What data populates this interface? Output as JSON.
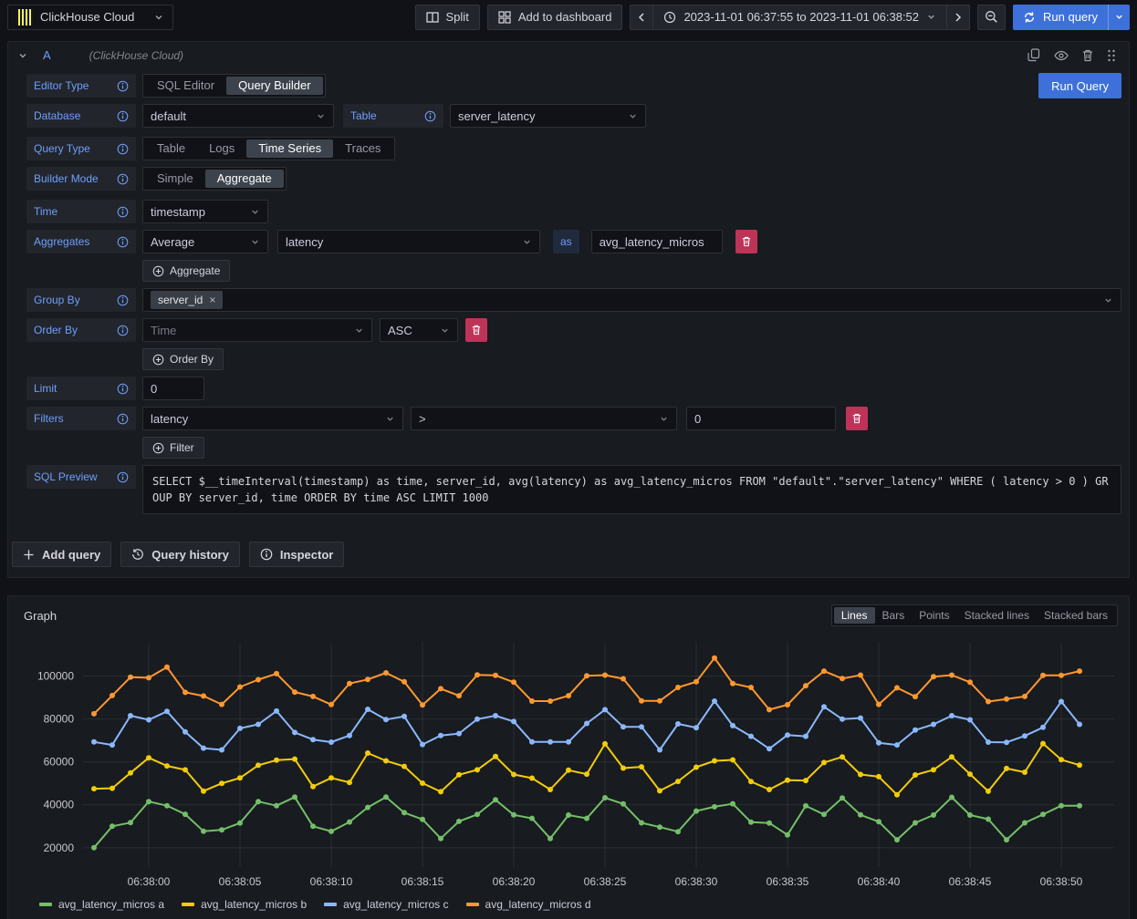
{
  "top_bar": {
    "datasource_name": "ClickHouse Cloud",
    "split": "Split",
    "add_to_dashboard": "Add to dashboard",
    "time_range": "2023-11-01 06:37:55 to 2023-11-01 06:38:52",
    "run_query": "Run query"
  },
  "query_editor": {
    "ref_id": "A",
    "datasource_hint": "(ClickHouse Cloud)",
    "run_query": "Run Query",
    "editor_type": {
      "label": "Editor Type",
      "options": [
        "SQL Editor",
        "Query Builder"
      ],
      "selected": "Query Builder"
    },
    "database": {
      "label": "Database",
      "value": "default"
    },
    "table": {
      "label": "Table",
      "value": "server_latency"
    },
    "query_type": {
      "label": "Query Type",
      "options": [
        "Table",
        "Logs",
        "Time Series",
        "Traces"
      ],
      "selected": "Time Series"
    },
    "builder_mode": {
      "label": "Builder Mode",
      "options": [
        "Simple",
        "Aggregate"
      ],
      "selected": "Aggregate"
    },
    "time": {
      "label": "Time",
      "value": "timestamp"
    },
    "aggregates": {
      "label": "Aggregates",
      "function": "Average",
      "column": "latency",
      "as_keyword": "as",
      "alias": "avg_latency_micros",
      "add_button": "Aggregate"
    },
    "group_by": {
      "label": "Group By",
      "value": "server_id"
    },
    "order_by": {
      "label": "Order By",
      "field": "Time",
      "direction": "ASC",
      "add_button": "Order By"
    },
    "limit": {
      "label": "Limit",
      "value": "0"
    },
    "filters": {
      "label": "Filters",
      "field": "latency",
      "operator": ">",
      "value": "0",
      "add_button": "Filter"
    },
    "sql_preview": {
      "label": "SQL Preview",
      "sql": "SELECT $__timeInterval(timestamp) as time, server_id, avg(latency) as avg_latency_micros FROM \"default\".\"server_latency\" WHERE ( latency > 0 ) GROUP BY server_id, time ORDER BY time ASC LIMIT 1000"
    }
  },
  "explore_actions": {
    "add_query": "Add query",
    "query_history": "Query history",
    "inspector": "Inspector"
  },
  "graph": {
    "title": "Graph",
    "view_modes": [
      "Lines",
      "Bars",
      "Points",
      "Stacked lines",
      "Stacked bars"
    ],
    "selected_mode": "Lines",
    "legend": [
      {
        "label": "avg_latency_micros a"
      },
      {
        "label": "avg_latency_micros b"
      },
      {
        "label": "avg_latency_micros c"
      },
      {
        "label": "avg_latency_micros d"
      }
    ]
  },
  "chart_data": {
    "type": "line",
    "title": "Graph",
    "x_unit": "seconds relative to 06:38:00, one point per second",
    "x_domain": [
      -3.6,
      52.9
    ],
    "y_domain": [
      11000,
      115500
    ],
    "y_ticks": [
      20000,
      40000,
      60000,
      80000,
      100000
    ],
    "x_ticks": [
      {
        "s": 0,
        "label": "06:38:00"
      },
      {
        "s": 5,
        "label": "06:38:05"
      },
      {
        "s": 10,
        "label": "06:38:10"
      },
      {
        "s": 15,
        "label": "06:38:15"
      },
      {
        "s": 20,
        "label": "06:38:20"
      },
      {
        "s": 25,
        "label": "06:38:25"
      },
      {
        "s": 30,
        "label": "06:38:30"
      },
      {
        "s": 35,
        "label": "06:38:35"
      },
      {
        "s": 40,
        "label": "06:38:40"
      },
      {
        "s": 45,
        "label": "06:38:45"
      },
      {
        "s": 50,
        "label": "06:38:50"
      }
    ],
    "x": [
      -3,
      -2,
      -1,
      0,
      1,
      2,
      3,
      4,
      5,
      6,
      7,
      8,
      9,
      10,
      11,
      12,
      13,
      14,
      15,
      16,
      17,
      18,
      19,
      20,
      21,
      22,
      23,
      24,
      25,
      26,
      27,
      28,
      29,
      30,
      31,
      32,
      33,
      34,
      35,
      36,
      37,
      38,
      39,
      40,
      41,
      42,
      43,
      44,
      45,
      46,
      47,
      48,
      49,
      50,
      51
    ],
    "series": [
      {
        "name": "avg_latency_micros a",
        "color": "#73BF69",
        "values": [
          20000,
          30000,
          31700,
          41500,
          39600,
          35600,
          27700,
          28300,
          31500,
          41500,
          39600,
          43600,
          30000,
          27600,
          32000,
          38800,
          43600,
          36300,
          33200,
          24300,
          32300,
          35500,
          42300,
          35300,
          33700,
          24300,
          35200,
          33700,
          43300,
          40400,
          31600,
          29600,
          27500,
          37100,
          39100,
          40500,
          31900,
          31500,
          26000,
          39500,
          35500,
          43200,
          35300,
          32100,
          23700,
          31600,
          35200,
          43500,
          35200,
          33300,
          23700,
          31600,
          35500,
          39600,
          39600
        ]
      },
      {
        "name": "avg_latency_micros b",
        "color": "#F2CC0C",
        "values": [
          47500,
          47700,
          54900,
          61900,
          58100,
          56300,
          46400,
          50000,
          52500,
          58400,
          60800,
          61300,
          48500,
          52500,
          50400,
          64100,
          60500,
          57900,
          50100,
          46100,
          54000,
          56300,
          62500,
          54100,
          52400,
          47100,
          56100,
          54300,
          68400,
          57100,
          57700,
          46500,
          50900,
          57500,
          60500,
          60900,
          50800,
          47100,
          51500,
          51300,
          59700,
          62300,
          54100,
          53100,
          44700,
          53900,
          56300,
          62300,
          54300,
          46300,
          56900,
          55200,
          68500,
          61000,
          58500
        ]
      },
      {
        "name": "avg_latency_micros c",
        "color": "#8AB8FF",
        "values": [
          69300,
          67900,
          81500,
          79600,
          83500,
          74000,
          66400,
          65600,
          75600,
          77500,
          83700,
          73700,
          70400,
          69200,
          72300,
          84500,
          79700,
          81200,
          68100,
          72300,
          73200,
          79900,
          81500,
          78800,
          69300,
          69300,
          69300,
          77900,
          84300,
          76300,
          76300,
          65600,
          77700,
          75900,
          88300,
          76900,
          71900,
          66100,
          72500,
          71900,
          85700,
          79900,
          80400,
          68900,
          67900,
          74800,
          77500,
          81500,
          79600,
          69200,
          69100,
          72100,
          76100,
          88100,
          77500
        ]
      },
      {
        "name": "avg_latency_micros d",
        "color": "#FF9830",
        "values": [
          82400,
          90900,
          99500,
          99200,
          104100,
          92400,
          90700,
          86800,
          94900,
          98300,
          101100,
          92500,
          90500,
          86700,
          96500,
          98400,
          101500,
          97300,
          86500,
          94100,
          90800,
          100500,
          100300,
          97100,
          88300,
          88300,
          90800,
          100100,
          100400,
          98700,
          88400,
          88400,
          94700,
          97300,
          108400,
          96500,
          94700,
          84300,
          86600,
          95500,
          102300,
          98800,
          100400,
          86800,
          94500,
          90400,
          99700,
          100400,
          97100,
          88100,
          89300,
          90500,
          100300,
          100300,
          102300
        ]
      }
    ],
    "legend_position": "bottom",
    "grid": true
  }
}
